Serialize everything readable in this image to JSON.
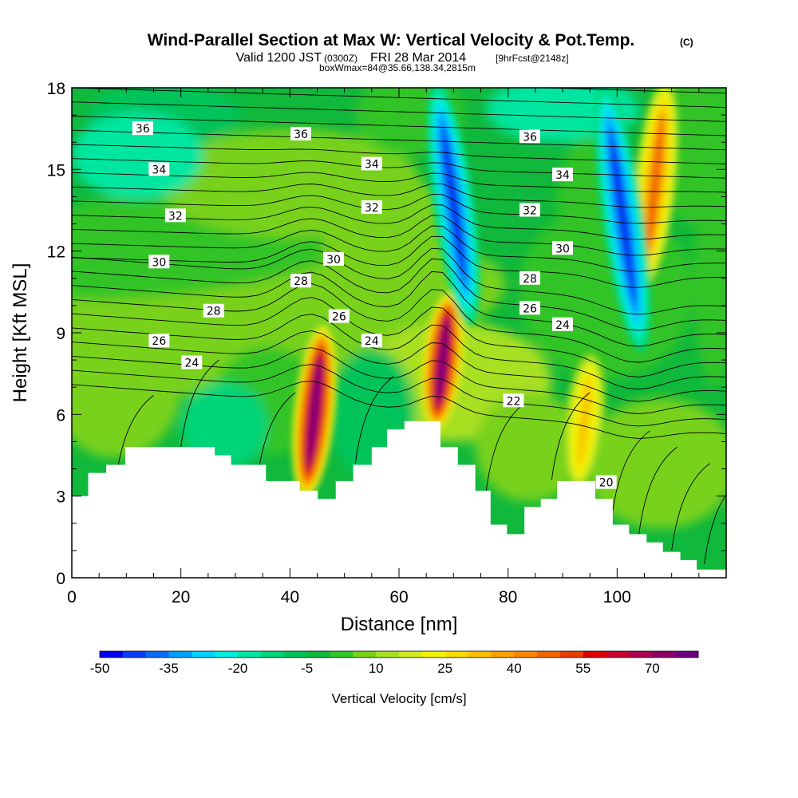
{
  "chart_data": {
    "type": "contour-section",
    "title": "Wind-Parallel Section at Max W: Vertical Velocity & Pot.Temp.",
    "title_mark": "(C)",
    "subtitle": {
      "prefix": "Valid 1200 JST",
      "utc": "(0300Z)",
      "date": "FRI 28 Mar 2014",
      "fcst": "[9hrFcst@2148z]",
      "detail": "boxWmax=84@35.66,138.34,2815m"
    },
    "xlabel": "Distance [nm]",
    "ylabel": "Height [Kft MSL]",
    "xlim": [
      0,
      120
    ],
    "ylim": [
      0,
      18
    ],
    "x_ticks": [
      0,
      20,
      40,
      60,
      80,
      100
    ],
    "y_ticks": [
      0,
      3,
      6,
      9,
      12,
      15,
      18
    ],
    "colorbar": {
      "label": "Vertical Velocity [cm/s]",
      "tick_labels": [
        "-50",
        "-35",
        "-20",
        "-5",
        "10",
        "25",
        "40",
        "55",
        "70"
      ],
      "min": -50,
      "max": 85,
      "colors": [
        "#0000f0",
        "#0a3cf5",
        "#0a6cf5",
        "#00a0ff",
        "#00d2ff",
        "#00eee0",
        "#00e6a0",
        "#00d478",
        "#00c45a",
        "#10b83c",
        "#30c428",
        "#78d21a",
        "#a8e024",
        "#d2ec24",
        "#f2f200",
        "#f8dc00",
        "#f8c000",
        "#f8a000",
        "#f88400",
        "#f06400",
        "#e83c00",
        "#e00000",
        "#c8002e",
        "#ac0050",
        "#8c006a",
        "#6e0080"
      ]
    },
    "vertical_velocity_features": [
      {
        "x": 44.5,
        "y_bottom": 3.2,
        "y_top": 9.0,
        "w": 80
      },
      {
        "x": 68.0,
        "y_bottom": 5.7,
        "y_top": 10.2,
        "w": 84
      },
      {
        "x": 94.0,
        "y_bottom": 3.5,
        "y_top": 8.0,
        "w": 35
      },
      {
        "x": 107.0,
        "y_bottom": 11.0,
        "y_top": 18.0,
        "w": 50
      },
      {
        "x": 70.0,
        "y_bottom": 9.5,
        "y_top": 18.0,
        "w": -45
      },
      {
        "x": 101.0,
        "y_bottom": 8.5,
        "y_top": 18.0,
        "w": -45
      }
    ],
    "theta_contour_labels": [
      {
        "text": "36",
        "x": 13,
        "y": 16.5
      },
      {
        "text": "36",
        "x": 42,
        "y": 16.3
      },
      {
        "text": "36",
        "x": 84,
        "y": 16.2
      },
      {
        "text": "34",
        "x": 16,
        "y": 15.0
      },
      {
        "text": "34",
        "x": 55,
        "y": 15.2
      },
      {
        "text": "34",
        "x": 90,
        "y": 14.8
      },
      {
        "text": "32",
        "x": 19,
        "y": 13.3
      },
      {
        "text": "32",
        "x": 55,
        "y": 13.6
      },
      {
        "text": "32",
        "x": 84,
        "y": 13.5
      },
      {
        "text": "30",
        "x": 16,
        "y": 11.6
      },
      {
        "text": "30",
        "x": 48,
        "y": 11.7
      },
      {
        "text": "30",
        "x": 90,
        "y": 12.1
      },
      {
        "text": "28",
        "x": 42,
        "y": 10.9
      },
      {
        "text": "28",
        "x": 26,
        "y": 9.8
      },
      {
        "text": "28",
        "x": 84,
        "y": 11.0
      },
      {
        "text": "26",
        "x": 49,
        "y": 9.6
      },
      {
        "text": "26",
        "x": 16,
        "y": 8.7
      },
      {
        "text": "26",
        "x": 84,
        "y": 9.9
      },
      {
        "text": "24",
        "x": 22,
        "y": 7.9
      },
      {
        "text": "24",
        "x": 55,
        "y": 8.7
      },
      {
        "text": "24",
        "x": 90,
        "y": 9.3
      },
      {
        "text": "22",
        "x": 81,
        "y": 6.5
      },
      {
        "text": "20",
        "x": 98,
        "y": 3.5
      }
    ],
    "terrain_steps": [
      {
        "x": 0,
        "h": 3.0
      },
      {
        "x": 3,
        "h": 3.85
      },
      {
        "x": 6.3,
        "h": 4.15
      },
      {
        "x": 9.8,
        "h": 4.8
      },
      {
        "x": 26.2,
        "h": 4.5
      },
      {
        "x": 29.2,
        "h": 4.15
      },
      {
        "x": 35.6,
        "h": 3.55
      },
      {
        "x": 41.8,
        "h": 3.2
      },
      {
        "x": 45.1,
        "h": 2.9
      },
      {
        "x": 48.4,
        "h": 3.55
      },
      {
        "x": 51.6,
        "h": 4.15
      },
      {
        "x": 55.0,
        "h": 4.8
      },
      {
        "x": 57.8,
        "h": 5.45
      },
      {
        "x": 61.0,
        "h": 5.75
      },
      {
        "x": 67.6,
        "h": 4.8
      },
      {
        "x": 70.8,
        "h": 4.15
      },
      {
        "x": 74.0,
        "h": 3.2
      },
      {
        "x": 76.8,
        "h": 1.95
      },
      {
        "x": 79.8,
        "h": 1.6
      },
      {
        "x": 83.0,
        "h": 2.6
      },
      {
        "x": 86.0,
        "h": 2.9
      },
      {
        "x": 89.0,
        "h": 3.55
      },
      {
        "x": 96.0,
        "h": 2.9
      },
      {
        "x": 99.2,
        "h": 1.95
      },
      {
        "x": 102.2,
        "h": 1.6
      },
      {
        "x": 105.4,
        "h": 1.3
      },
      {
        "x": 108.4,
        "h": 0.95
      },
      {
        "x": 111.6,
        "h": 0.65
      },
      {
        "x": 114.6,
        "h": 0.3
      },
      {
        "x": 118.6,
        "h": 0.3
      }
    ]
  }
}
